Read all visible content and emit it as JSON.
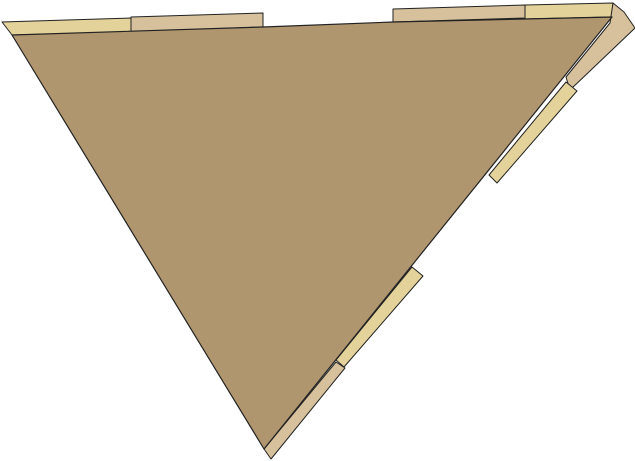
{
  "image": {
    "subject": "triangular-floor-plan-shape",
    "colors": {
      "background": "#ffffff",
      "main_fill": "#b0966f",
      "edge_strip_light": "#e3d29a",
      "edge_strip_muted": "#d6c19c",
      "outline": "#222222"
    }
  }
}
